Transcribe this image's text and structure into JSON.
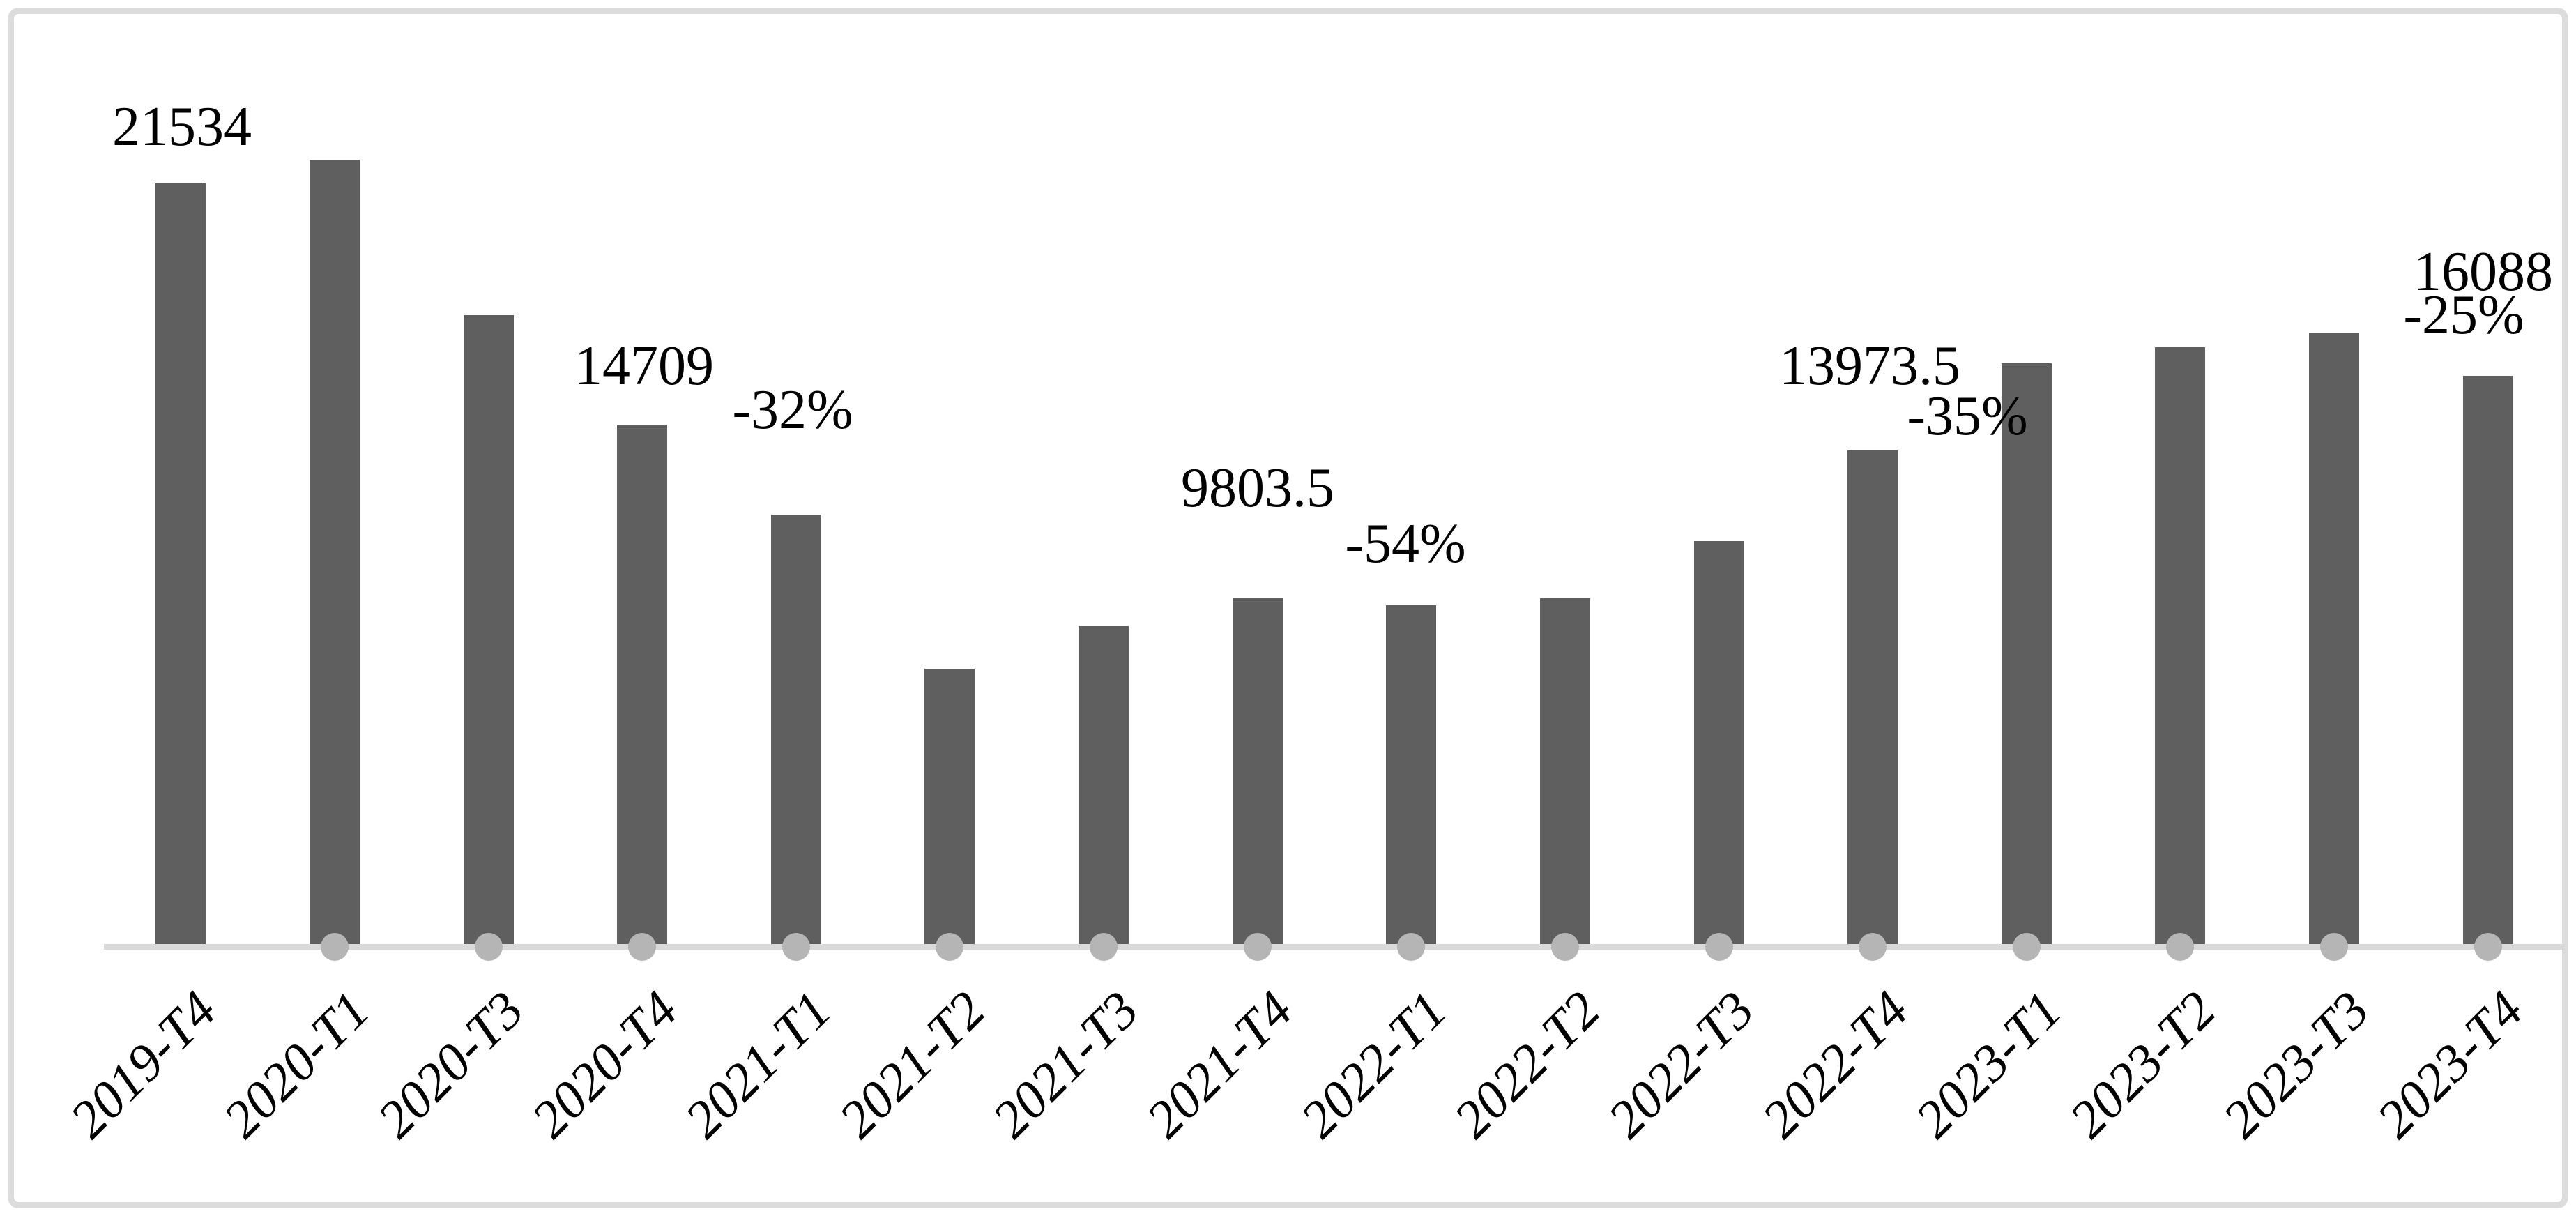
{
  "style": {
    "bar_color": "#5f5f5f",
    "marker_color": "#b5b5b5",
    "axis_line_color": "#d9d9d9",
    "frame_border_color": "#dcdcdc",
    "text_color": "#000000",
    "background_color": "#ffffff"
  },
  "chart_data": {
    "type": "bar",
    "title": "",
    "xlabel": "",
    "ylabel": "",
    "grid": false,
    "legend": "none",
    "ylim": [
      0,
      23000
    ],
    "categories": [
      "2019-T4",
      "2020-T1",
      "2020-T3",
      "2020-T4",
      "2021-T1",
      "2021-T2",
      "2021-T3",
      "2021-T4",
      "2022-T1",
      "2022-T2",
      "2022-T3",
      "2022-T4",
      "2023-T1",
      "2023-T2",
      "2023-T3",
      "2023-T4"
    ],
    "values": [
      21534,
      22200,
      17800,
      14709,
      12150,
      7800,
      9000,
      9803.5,
      9600,
      9800,
      11400,
      13973.5,
      16450,
      16900,
      17300,
      16088
    ],
    "zero_markers": [
      "2020-T1",
      "2020-T3",
      "2020-T4",
      "2021-T1",
      "2021-T2",
      "2021-T3",
      "2021-T4",
      "2022-T1",
      "2022-T2",
      "2022-T3",
      "2022-T4",
      "2023-T1",
      "2023-T2",
      "2023-T3",
      "2023-T4"
    ],
    "annotations": [
      {
        "text": "21534",
        "near": "2019-T4"
      },
      {
        "text": "14709",
        "near": "2020-T4"
      },
      {
        "text": "-32%",
        "near": "2021-T1"
      },
      {
        "text": "9803.5",
        "near": "2021-T4"
      },
      {
        "text": "-54%",
        "near": "2022-T1"
      },
      {
        "text": "13973.5",
        "near": "2022-T4"
      },
      {
        "text": "-35%",
        "near": "2023-T1"
      },
      {
        "text": "16088",
        "near": "2023-T4"
      },
      {
        "text": "-25%",
        "near": "2023-T4"
      }
    ]
  }
}
